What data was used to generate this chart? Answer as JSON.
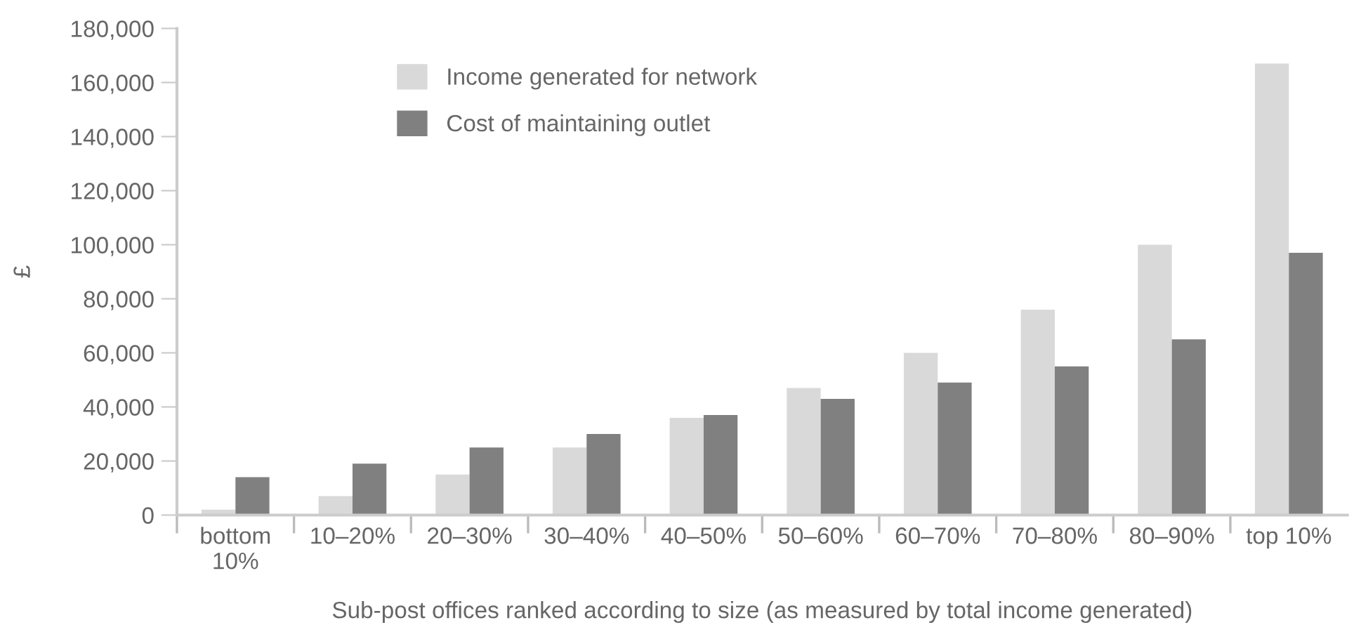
{
  "chart_data": {
    "type": "bar",
    "xlabel": "Sub-post offices ranked according to size (as measured by total income generated)",
    "ylabel": "£",
    "categories": [
      "bottom\n10%",
      "10–20%",
      "20–30%",
      "30–40%",
      "40–50%",
      "50–60%",
      "60–70%",
      "70–80%",
      "80–90%",
      "top 10%"
    ],
    "series": [
      {
        "name": "Income generated for network",
        "color": "#d9d9d9",
        "values": [
          2000,
          7000,
          15000,
          25000,
          36000,
          47000,
          60000,
          76000,
          100000,
          167000
        ]
      },
      {
        "name": "Cost of maintaining outlet",
        "color": "#808080",
        "values": [
          14000,
          19000,
          25000,
          30000,
          37000,
          43000,
          49000,
          55000,
          65000,
          97000
        ]
      }
    ],
    "ylim": [
      0,
      180000
    ],
    "yticks": [
      {
        "value": 0,
        "label": "0"
      },
      {
        "value": 20000,
        "label": "20,000"
      },
      {
        "value": 40000,
        "label": "40,000"
      },
      {
        "value": 60000,
        "label": "60,000"
      },
      {
        "value": 80000,
        "label": "80,000"
      },
      {
        "value": 100000,
        "label": "100,000"
      },
      {
        "value": 120000,
        "label": "120,000"
      },
      {
        "value": 140000,
        "label": "140,000"
      },
      {
        "value": 160000,
        "label": "160,000"
      },
      {
        "value": 180000,
        "label": "180,000"
      }
    ],
    "grid": false,
    "legend": "top left"
  }
}
